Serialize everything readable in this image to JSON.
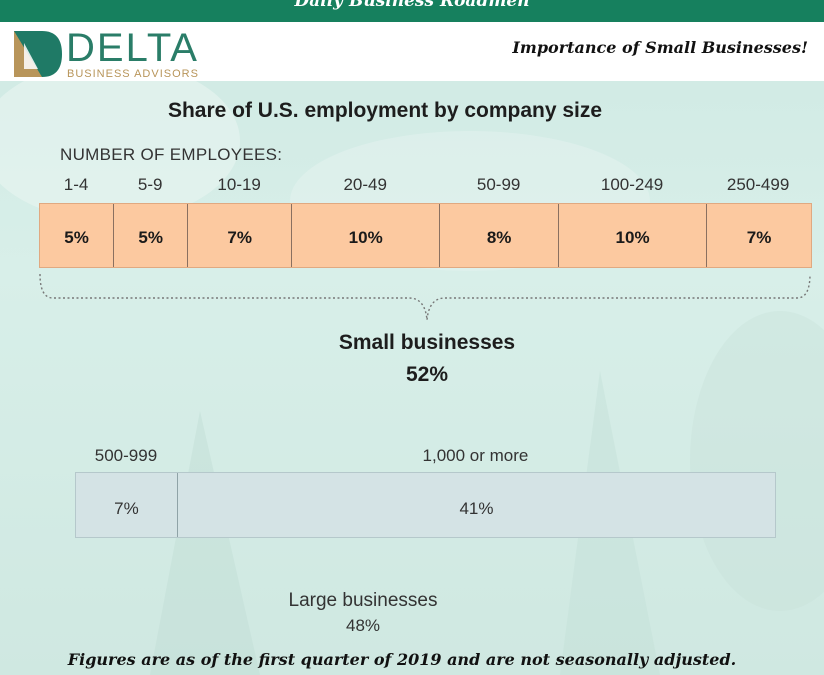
{
  "header": {
    "banner_text": "Daily Business Roadmen",
    "brand_name": "DELTA",
    "brand_sub": "BUSINESS ADVISORS",
    "tagline": "Importance of Small Businesses!"
  },
  "chart_data": {
    "type": "bar",
    "title": "Share of U.S. employment by company size",
    "employees_heading": "NUMBER OF EMPLOYEES:",
    "small": {
      "categories": [
        "1-4",
        "5-9",
        "10-19",
        "20-49",
        "50-99",
        "100-249",
        "250-499"
      ],
      "values": [
        5,
        5,
        7,
        10,
        8,
        10,
        7
      ],
      "value_labels": [
        "5%",
        "5%",
        "7%",
        "10%",
        "8%",
        "10%",
        "7%"
      ],
      "group_title": "Small businesses",
      "group_total": "52%"
    },
    "large": {
      "categories": [
        "500-999",
        "1,000 or more"
      ],
      "values": [
        7,
        41
      ],
      "value_labels": [
        "7%",
        "41%"
      ],
      "group_title": "Large businesses",
      "group_total": "48%"
    },
    "colors": {
      "small_fill": "#fcc9a0",
      "large_fill": "#d4e3e5"
    }
  },
  "footnote": "Figures are as of the first quarter of 2019 and are not seasonally adjusted."
}
